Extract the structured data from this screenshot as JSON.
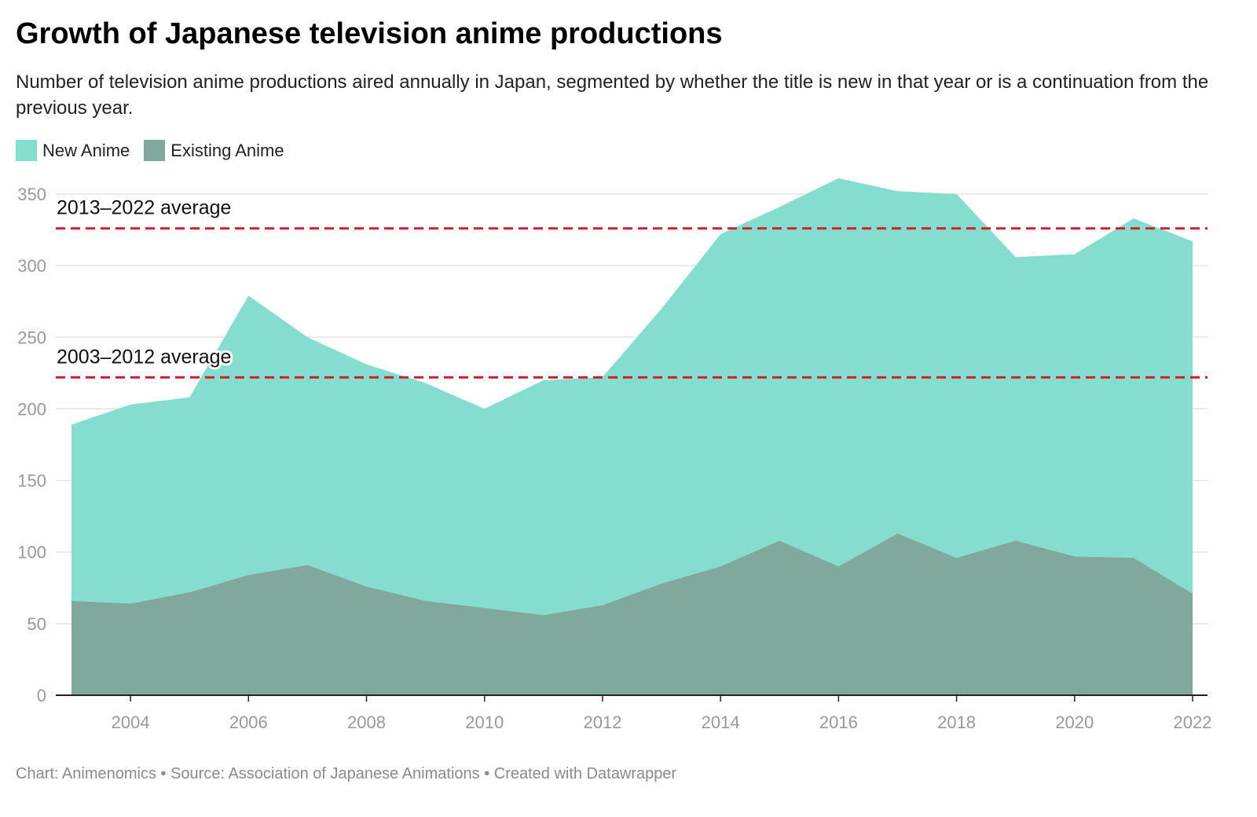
{
  "header": {
    "title": "Growth of Japanese television anime productions",
    "subtitle": "Number of television anime productions aired annually in Japan, segmented by whether the title is new in that year or is a continuation from the previous year."
  },
  "legend": {
    "items": [
      {
        "label": "New Anime",
        "color": "#84ddce"
      },
      {
        "label": "Existing Anime",
        "color": "#80a89c"
      }
    ]
  },
  "footer": {
    "text": "Chart: Animenomics • Source: Association of Japanese Animations • Created with Datawrapper"
  },
  "chart_data": {
    "type": "area",
    "stacked": true,
    "x": [
      2003,
      2004,
      2005,
      2006,
      2007,
      2008,
      2009,
      2010,
      2011,
      2012,
      2013,
      2014,
      2015,
      2016,
      2017,
      2018,
      2019,
      2020,
      2021,
      2022
    ],
    "series": [
      {
        "name": "Existing Anime",
        "color": "#80a89c",
        "values": [
          66,
          64,
          72,
          84,
          91,
          76,
          66,
          61,
          56,
          63,
          78,
          90,
          108,
          90,
          113,
          96,
          108,
          97,
          96,
          71
        ]
      },
      {
        "name": "New Anime",
        "color": "#84ddce",
        "values": [
          123,
          139,
          136,
          195,
          159,
          155,
          152,
          139,
          164,
          159,
          192,
          232,
          233,
          271,
          239,
          254,
          198,
          211,
          237,
          246
        ]
      }
    ],
    "totals": [
      189,
      203,
      208,
      279,
      250,
      231,
      218,
      200,
      220,
      222,
      270,
      322,
      341,
      361,
      352,
      350,
      306,
      308,
      333,
      317
    ],
    "ylim": [
      0,
      350
    ],
    "y_ticks": [
      0,
      50,
      100,
      150,
      200,
      250,
      300,
      350
    ],
    "x_ticks": [
      2004,
      2006,
      2008,
      2010,
      2012,
      2014,
      2016,
      2018,
      2020,
      2022
    ],
    "grid": true,
    "legend_position": "top-left",
    "reference_lines": [
      {
        "label": "2013–2022 average",
        "value": 326,
        "color": "#d0202a"
      },
      {
        "label": "2003–2012 average",
        "value": 222,
        "color": "#d0202a"
      }
    ]
  }
}
